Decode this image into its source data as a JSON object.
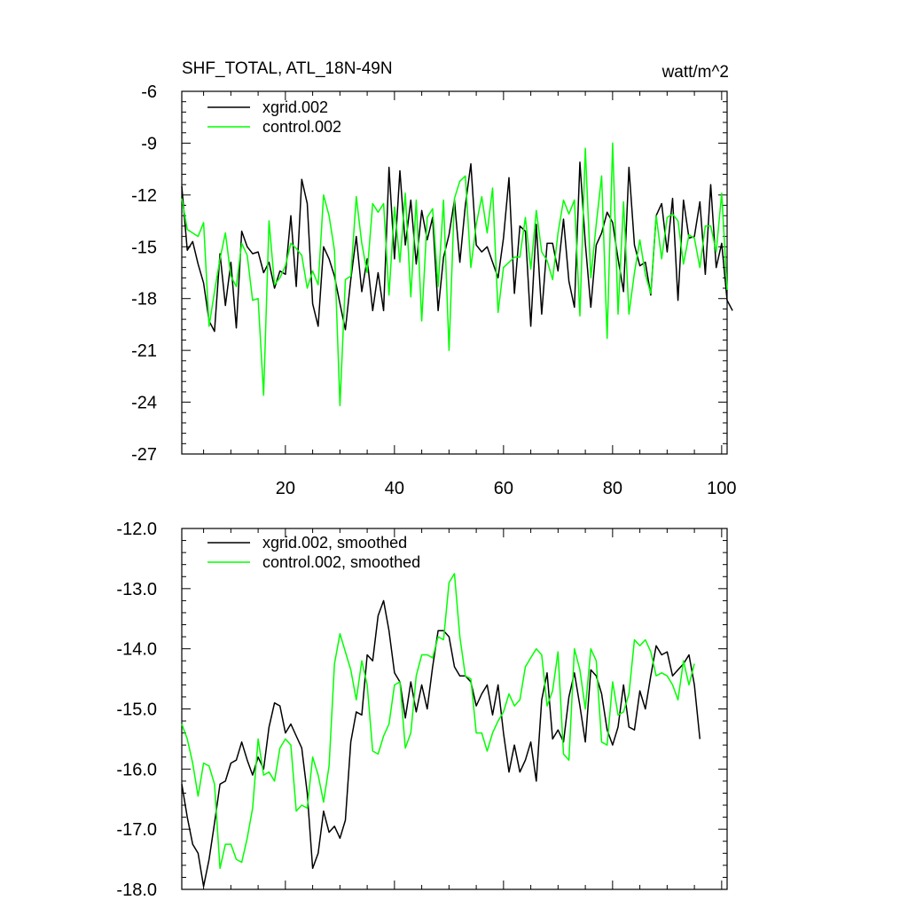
{
  "figure": {
    "title_left": "SHF_TOTAL, ATL_18N-49N",
    "title_right": "watt/m^2"
  },
  "chart_data": [
    {
      "type": "line",
      "xlim": [
        1,
        101
      ],
      "ylim": [
        -27,
        -6
      ],
      "x_ticks": [
        20,
        40,
        60,
        80,
        100
      ],
      "x_tick_labels": [
        "20",
        "40",
        "60",
        "80",
        "100"
      ],
      "y_ticks": [
        -27,
        -24,
        -21,
        -18,
        -15,
        -12,
        -9,
        -6
      ],
      "y_tick_labels": [
        "-27",
        "-24",
        "-21",
        "-18",
        "-15",
        "-12",
        "-9",
        "-6"
      ],
      "legend_position": "top-left",
      "series": [
        {
          "name": "xgrid.002",
          "color": "#000000",
          "values": [
            -11.5,
            -15.2,
            -14.7,
            -16.0,
            -17.1,
            -19.3,
            -19.9,
            -15.4,
            -18.4,
            -15.9,
            -19.7,
            -14.1,
            -15.0,
            -15.4,
            -15.3,
            -16.5,
            -15.9,
            -17.4,
            -16.4,
            -16.6,
            -13.2,
            -17.3,
            -11.1,
            -12.5,
            -18.3,
            -19.6,
            -15.0,
            -15.7,
            -16.7,
            -18.3,
            -19.8,
            -16.9,
            -14.4,
            -17.6,
            -15.7,
            -18.7,
            -16.5,
            -18.7,
            -10.4,
            -15.7,
            -10.6,
            -14.9,
            -12.3,
            -16.0,
            -12.9,
            -14.6,
            -13.3,
            -18.7,
            -15.6,
            -14.3,
            -12.3,
            -15.9,
            -12.6,
            -10.2,
            -14.9,
            -15.3,
            -15.0,
            -15.9,
            -16.8,
            -14.5,
            -11.0,
            -17.7,
            -13.8,
            -14.1,
            -19.6,
            -13.7,
            -18.9,
            -14.8,
            -14.8,
            -16.4,
            -13.4,
            -17.0,
            -18.5,
            -10.1,
            -14.8,
            -18.5,
            -14.9,
            -14.2,
            -13.0,
            -13.6,
            -15.7,
            -17.6,
            -10.4,
            -14.9,
            -16.1,
            -15.9,
            -17.8,
            -13.2,
            -12.5,
            -15.3,
            -12.2,
            -18.1,
            -12.3,
            -14.5,
            -14.4,
            -12.4,
            -16.6,
            -11.4,
            -16.2,
            -14.8,
            -18.1,
            -18.7
          ]
        },
        {
          "name": "control.002",
          "color": "#00ff00",
          "values": [
            -12.2,
            -14.0,
            -14.2,
            -14.4,
            -13.6,
            -19.6,
            -17.6,
            -15.7,
            -14.2,
            -16.7,
            -17.3,
            -14.8,
            -15.5,
            -18.1,
            -18.0,
            -23.6,
            -13.5,
            -17.2,
            -16.8,
            -16.1,
            -14.8,
            -15.1,
            -15.5,
            -17.4,
            -16.4,
            -17.2,
            -12.0,
            -13.2,
            -15.2,
            -24.2,
            -16.9,
            -16.7,
            -12.1,
            -14.8,
            -16.5,
            -12.5,
            -13.0,
            -12.5,
            -17.8,
            -12.7,
            -15.9,
            -11.9,
            -17.9,
            -12.3,
            -19.3,
            -13.3,
            -12.8,
            -17.3,
            -12.3,
            -21.0,
            -12.2,
            -11.2,
            -10.9,
            -16.2,
            -13.7,
            -12.1,
            -14.2,
            -11.6,
            -18.8,
            -16.2,
            -15.9,
            -15.6,
            -15.6,
            -13.3,
            -16.3,
            -12.9,
            -15.3,
            -15.8,
            -16.9,
            -14.2,
            -12.3,
            -13.1,
            -12.3,
            -19.0,
            -9.3,
            -16.8,
            -13.7,
            -10.9,
            -20.3,
            -9.0,
            -18.9,
            -12.4,
            -18.9,
            -16.5,
            -14.6,
            -16.6,
            -17.7,
            -13.2,
            -15.7,
            -13.3,
            -13.1,
            -13.5,
            -16.0,
            -14.3,
            -14.5,
            -16.2,
            -13.8,
            -13.8,
            -15.3,
            -11.9,
            -17.5
          ]
        }
      ]
    },
    {
      "type": "line",
      "xlim": [
        1,
        101
      ],
      "ylim": [
        -18.0,
        -12.0
      ],
      "x_ticks": [
        20,
        40,
        60,
        80,
        100
      ],
      "x_tick_labels": [],
      "y_ticks": [
        -18.0,
        -17.0,
        -16.0,
        -15.0,
        -14.0,
        -13.0,
        -12.0
      ],
      "y_tick_labels": [
        "-18.0",
        "-17.0",
        "-16.0",
        "-15.0",
        "-14.0",
        "-13.0",
        "-12.0"
      ],
      "legend_position": "top-left",
      "series": [
        {
          "name": "xgrid.002, smoothed",
          "color": "#000000",
          "values": [
            -16.25,
            -16.8,
            -17.25,
            -17.4,
            -17.95,
            -17.5,
            -16.9,
            -16.25,
            -16.2,
            -15.9,
            -15.85,
            -15.55,
            -15.85,
            -16.1,
            -15.8,
            -16.0,
            -15.3,
            -14.9,
            -14.95,
            -15.4,
            -15.25,
            -15.45,
            -15.65,
            -16.4,
            -17.65,
            -17.4,
            -16.7,
            -17.05,
            -16.95,
            -17.15,
            -16.85,
            -15.55,
            -15.05,
            -15.1,
            -14.1,
            -14.2,
            -13.45,
            -13.2,
            -13.7,
            -14.4,
            -14.55,
            -15.15,
            -14.55,
            -15.05,
            -14.6,
            -15.0,
            -14.3,
            -13.7,
            -13.7,
            -13.8,
            -14.3,
            -14.45,
            -14.45,
            -14.55,
            -14.95,
            -14.75,
            -14.6,
            -15.1,
            -14.6,
            -15.4,
            -16.05,
            -15.6,
            -16.05,
            -15.85,
            -15.55,
            -16.2,
            -14.85,
            -14.4,
            -15.5,
            -15.35,
            -15.55,
            -14.8,
            -14.4,
            -14.95,
            -15.55,
            -14.35,
            -14.45,
            -14.75,
            -15.35,
            -15.6,
            -15.3,
            -14.6,
            -15.3,
            -15.35,
            -14.7,
            -15.0,
            -14.45,
            -13.95,
            -14.1,
            -14.05,
            -14.45,
            -14.35,
            -14.25,
            -14.1,
            -14.6,
            -15.5
          ]
        },
        {
          "name": "control.002, smoothed",
          "color": "#00ff00",
          "values": [
            -15.25,
            -15.5,
            -15.9,
            -16.45,
            -15.9,
            -15.95,
            -16.25,
            -17.65,
            -17.25,
            -17.25,
            -17.5,
            -17.55,
            -17.15,
            -16.65,
            -15.5,
            -16.1,
            -16.05,
            -16.2,
            -15.65,
            -15.5,
            -15.6,
            -16.7,
            -16.6,
            -16.65,
            -15.8,
            -16.1,
            -16.55,
            -15.95,
            -14.25,
            -13.75,
            -14.05,
            -14.35,
            -14.85,
            -14.2,
            -14.6,
            -15.7,
            -15.75,
            -15.45,
            -15.25,
            -14.6,
            -14.55,
            -15.65,
            -15.4,
            -14.45,
            -14.1,
            -14.1,
            -14.15,
            -13.8,
            -13.85,
            -12.9,
            -12.75,
            -13.8,
            -14.45,
            -14.5,
            -15.4,
            -15.4,
            -15.7,
            -15.4,
            -15.2,
            -15.05,
            -14.75,
            -14.95,
            -14.85,
            -14.3,
            -14.15,
            -14.0,
            -14.1,
            -14.95,
            -14.7,
            -14.05,
            -15.75,
            -15.85,
            -14.0,
            -14.35,
            -15.0,
            -14.0,
            -14.2,
            -15.55,
            -15.6,
            -14.55,
            -15.1,
            -15.05,
            -14.75,
            -13.85,
            -13.95,
            -13.85,
            -14.05,
            -14.45,
            -14.4,
            -14.45,
            -14.6,
            -14.85,
            -14.2,
            -14.6,
            -14.25
          ]
        }
      ]
    }
  ]
}
